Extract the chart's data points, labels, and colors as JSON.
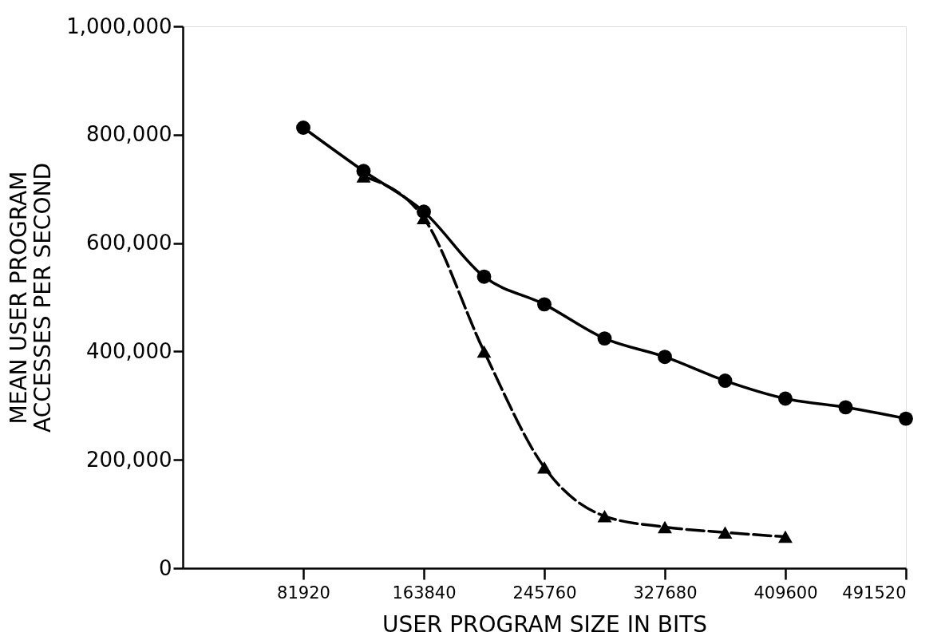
{
  "chart_data": {
    "type": "line",
    "xlabel": "USER PROGRAM SIZE IN BITS",
    "ylabel": "MEAN USER PROGRAM\nACCESSES PER SECOND",
    "series": [
      {
        "color": "#000000",
        "marker": "circle",
        "line_style": "solid",
        "x": [
          81920,
          122880,
          163840,
          204800,
          245760,
          286720,
          327680,
          368640,
          409600,
          450560,
          491520
        ],
        "values": [
          813000,
          733000,
          658000,
          538000,
          487000,
          424000,
          390000,
          346000,
          313000,
          297000,
          276000
        ]
      },
      {
        "color": "#000000",
        "marker": "triangle",
        "line_style": "dashed",
        "x": [
          122880,
          163840,
          204800,
          245760,
          286720,
          327680,
          368640,
          409600
        ],
        "values": [
          723000,
          646000,
          400000,
          186000,
          96000,
          76000,
          66000,
          58000
        ]
      }
    ],
    "xlim": [
      0,
      491520
    ],
    "ylim": [
      0,
      1000000
    ],
    "xticks": [
      81920,
      163840,
      245760,
      327680,
      409600,
      491520
    ],
    "yticks": [
      0,
      {
        "value": 200000,
        "label": "200,000"
      },
      {
        "value": 400000,
        "label": "400,000"
      },
      {
        "value": 600000,
        "label": "600,000"
      },
      {
        "value": 800000,
        "label": "800,000"
      },
      {
        "value": 1000000,
        "label": "1,000,000"
      }
    ],
    "grid": false
  }
}
